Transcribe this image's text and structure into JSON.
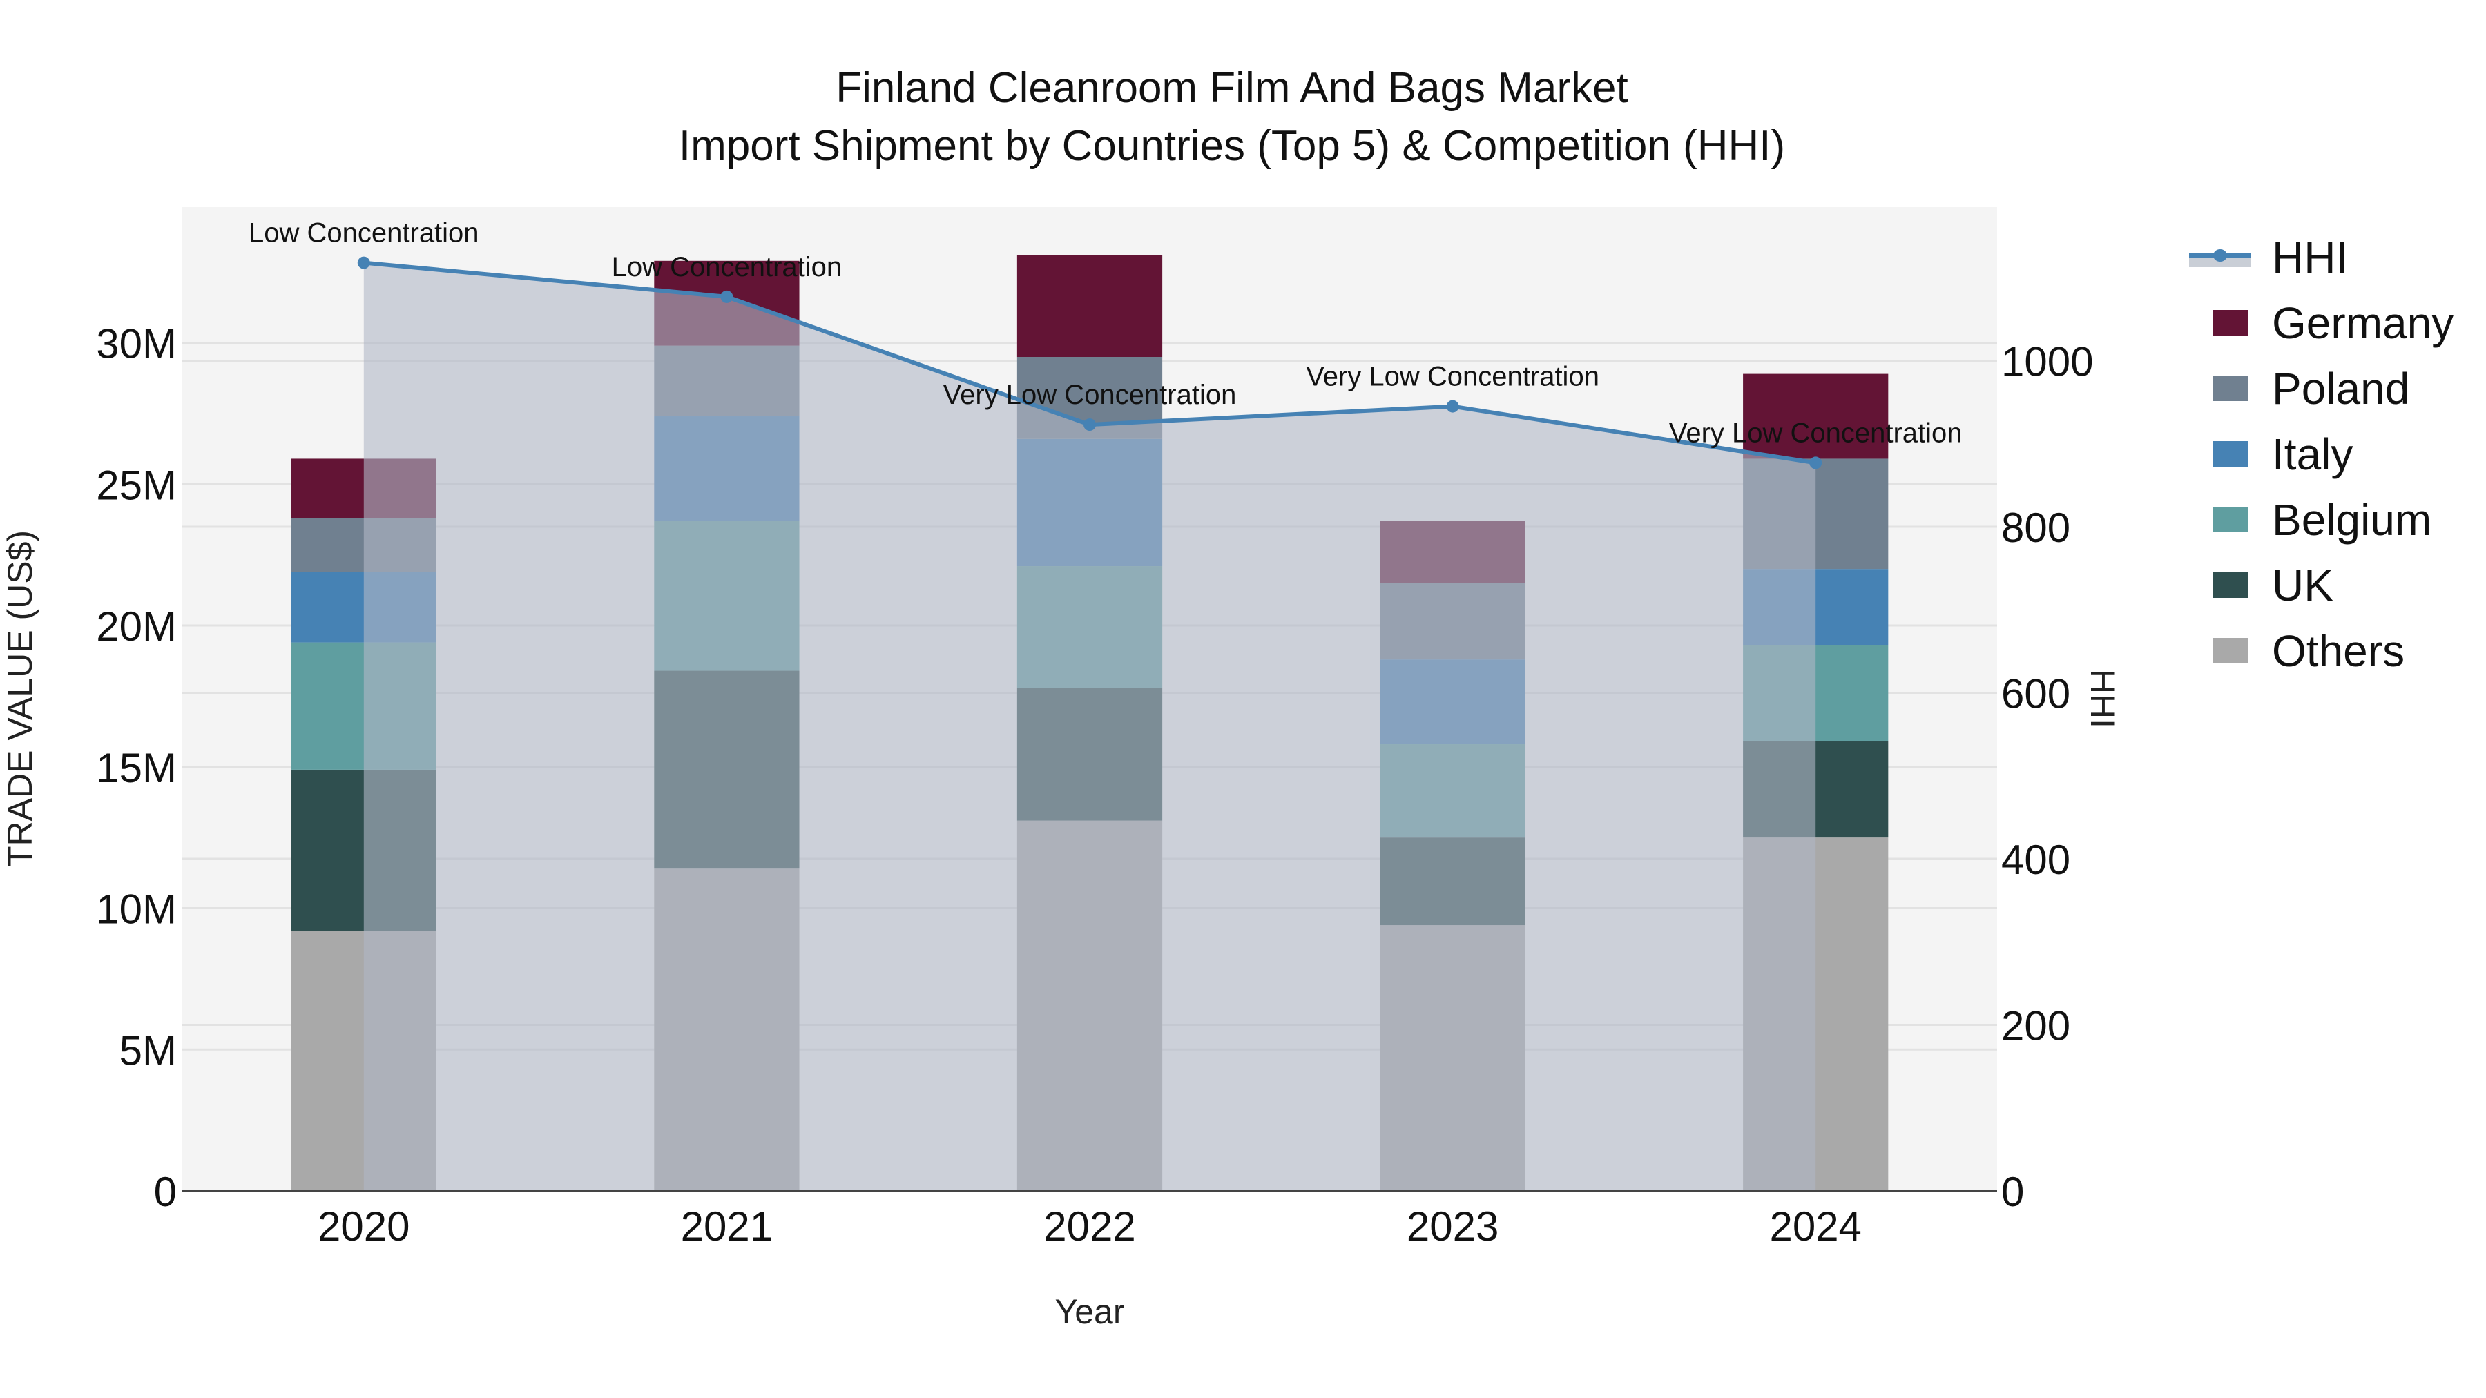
{
  "chart_data": {
    "type": "bar",
    "title": "Finland Cleanroom Film And Bags Market",
    "subtitle": "Import Shipment by Countries (Top 5) & Competition (HHI)",
    "xlabel": "Year",
    "ylabel": "TRADE VALUE (US$)",
    "y2label": "HHI",
    "categories": [
      "2020",
      "2021",
      "2022",
      "2023",
      "2024"
    ],
    "stacked": true,
    "ylim": [
      0,
      34.8
    ],
    "y_unit": "M",
    "y_ticks": [
      0,
      5,
      10,
      15,
      20,
      25,
      30
    ],
    "y_tick_labels": [
      "0",
      "5M",
      "10M",
      "15M",
      "20M",
      "25M",
      "30M"
    ],
    "y2lim": [
      0,
      1185
    ],
    "y2_ticks": [
      0,
      200,
      400,
      600,
      800,
      1000
    ],
    "y2_tick_labels": [
      "0",
      "200",
      "400",
      "600",
      "800",
      "1000"
    ],
    "grid": true,
    "legend_position": "right",
    "series": [
      {
        "name": "Others",
        "color": "#A9A9A9",
        "values": [
          9.2,
          11.4,
          13.1,
          9.4,
          12.5
        ]
      },
      {
        "name": "UK",
        "color": "#2F4F4F",
        "values": [
          5.7,
          7.0,
          4.7,
          3.1,
          3.4
        ]
      },
      {
        "name": "Belgium",
        "color": "#5F9EA0",
        "values": [
          4.5,
          5.3,
          4.3,
          3.3,
          3.4
        ]
      },
      {
        "name": "Italy",
        "color": "#4682B4",
        "values": [
          2.5,
          3.7,
          4.5,
          3.0,
          2.7
        ]
      },
      {
        "name": "Poland",
        "color": "#708090",
        "values": [
          1.9,
          2.5,
          2.9,
          2.7,
          3.9
        ]
      },
      {
        "name": "Germany",
        "color": "#631435",
        "values": [
          2.1,
          3.0,
          3.6,
          2.2,
          3.0
        ]
      }
    ],
    "line_series": {
      "name": "HHI",
      "axis": "y2",
      "color": "#4682B4",
      "fill_color": "rgba(176,184,198,0.6)",
      "values": [
        1118,
        1077,
        923,
        945,
        877
      ],
      "annotations": [
        "Low Concentration",
        "Low Concentration",
        "Very Low Concentration",
        "Very Low Concentration",
        "Very Low Concentration"
      ]
    }
  },
  "legend": [
    {
      "label": "HHI",
      "type": "line",
      "color": "#4682B4"
    },
    {
      "label": "Germany",
      "type": "box",
      "color": "#631435"
    },
    {
      "label": "Poland",
      "type": "box",
      "color": "#708090"
    },
    {
      "label": "Italy",
      "type": "box",
      "color": "#4682B4"
    },
    {
      "label": "Belgium",
      "type": "box",
      "color": "#5F9EA0"
    },
    {
      "label": "UK",
      "type": "box",
      "color": "#2F4F4F"
    },
    {
      "label": "Others",
      "type": "box",
      "color": "#A9A9A9"
    }
  ],
  "colors": {
    "plot_background": "#F4F4F4",
    "gridline": "#E2E2E2",
    "axis_line": "#444444"
  }
}
